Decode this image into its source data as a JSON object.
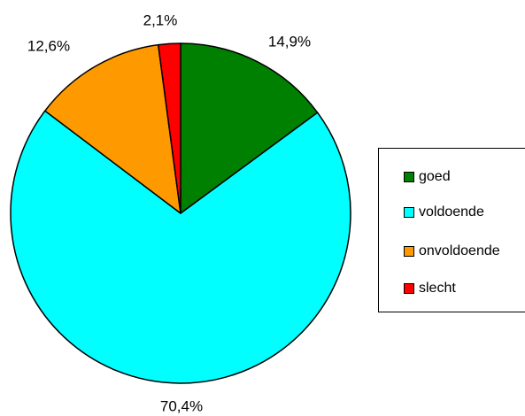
{
  "chart_data": {
    "type": "pie",
    "categories": [
      "goed",
      "voldoende",
      "onvoldoende",
      "slecht"
    ],
    "values": [
      14.9,
      70.4,
      12.6,
      2.1
    ],
    "labels": [
      "14,9%",
      "70,4%",
      "12,6%",
      "2,1%"
    ],
    "colors": [
      "#008000",
      "#00FFFF",
      "#FF9900",
      "#FF0000"
    ],
    "legend_position": "right",
    "start": "top, clockwise"
  },
  "legend": {
    "items": [
      {
        "label": "goed",
        "color": "#008000"
      },
      {
        "label": "voldoende",
        "color": "#00FFFF"
      },
      {
        "label": "onvoldoende",
        "color": "#FF9900"
      },
      {
        "label": "slecht",
        "color": "#FF0000"
      }
    ]
  }
}
